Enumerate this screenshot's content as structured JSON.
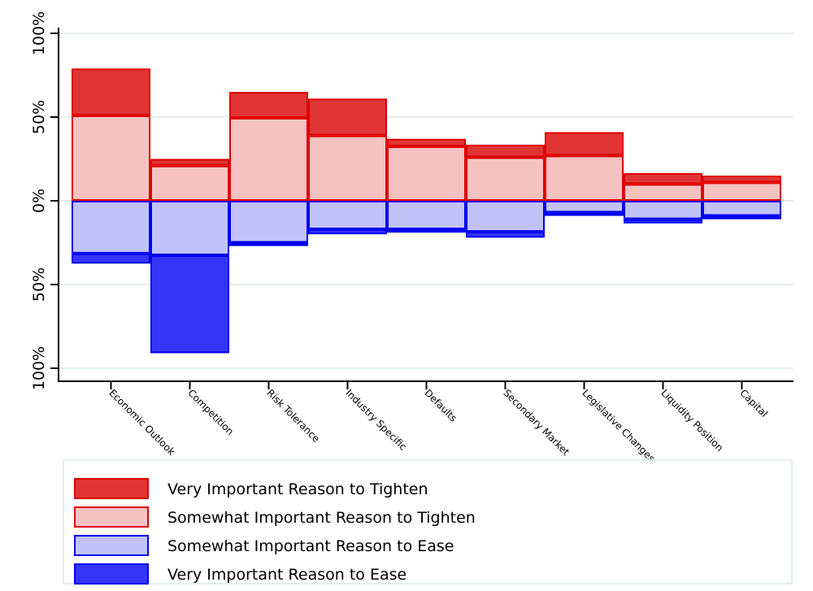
{
  "chart_data": {
    "type": "bar",
    "stacked": true,
    "diverging": true,
    "title": "",
    "xlabel": "",
    "ylabel": "",
    "ylim": [
      -100,
      100
    ],
    "y_ticks": [
      {
        "value": 100,
        "label": "100%"
      },
      {
        "value": 50,
        "label": "50%"
      },
      {
        "value": 0,
        "label": "0%"
      },
      {
        "value": -50,
        "label": "50%"
      },
      {
        "value": -100,
        "label": "100%"
      }
    ],
    "grid": true,
    "legend_position": "bottom",
    "categories": [
      "Economic Outlook",
      "Competition",
      "Risk Tolerance",
      "Industry Specific",
      "Defaults",
      "Secondary Market",
      "Legislative Changes",
      "Liquidity Position",
      "Capital"
    ],
    "series": [
      {
        "name": "Very Important Reason to Tighten",
        "direction": "up",
        "fill": "#e03535",
        "stroke": "#e00000",
        "values": [
          28,
          4,
          15.5,
          22,
          4.5,
          7.5,
          14,
          6.5,
          4
        ]
      },
      {
        "name": "Somewhat Important Reason to Tighten",
        "direction": "up",
        "fill": "#f5c2c2",
        "stroke": "#e00000",
        "values": [
          51,
          21,
          49.5,
          39,
          32.5,
          26,
          27,
          10,
          11
        ]
      },
      {
        "name": "Somewhat Important Reason to Ease",
        "direction": "down",
        "fill": "#c2c2fa",
        "stroke": "#0000f0",
        "values": [
          31.5,
          32.5,
          25,
          17,
          17,
          18.5,
          7,
          11,
          9
        ]
      },
      {
        "name": "Very Important Reason to Ease",
        "direction": "down",
        "fill": "#3535fa",
        "stroke": "#0000f0",
        "values": [
          6,
          58.5,
          2,
          3,
          2,
          3.5,
          2,
          2.5,
          2
        ]
      }
    ]
  }
}
